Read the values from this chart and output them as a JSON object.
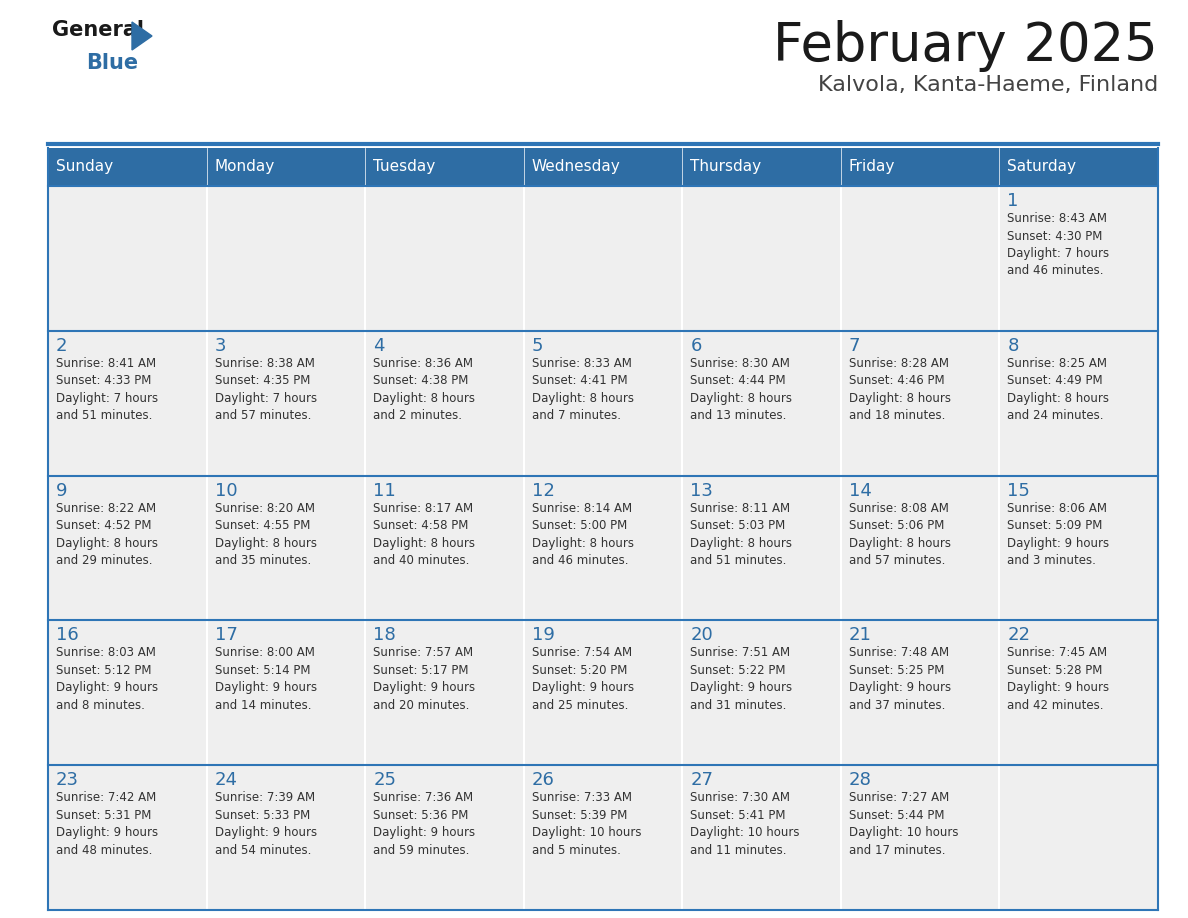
{
  "title": "February 2025",
  "subtitle": "Kalvola, Kanta-Haeme, Finland",
  "header_bg": "#2E6DA4",
  "header_text_color": "#FFFFFF",
  "cell_bg": "#EFEFEF",
  "day_number_color": "#2E6DA4",
  "info_text_color": "#333333",
  "border_color": "#2E75B6",
  "days_of_week": [
    "Sunday",
    "Monday",
    "Tuesday",
    "Wednesday",
    "Thursday",
    "Friday",
    "Saturday"
  ],
  "weeks": [
    [
      {
        "day": "",
        "info": ""
      },
      {
        "day": "",
        "info": ""
      },
      {
        "day": "",
        "info": ""
      },
      {
        "day": "",
        "info": ""
      },
      {
        "day": "",
        "info": ""
      },
      {
        "day": "",
        "info": ""
      },
      {
        "day": "1",
        "info": "Sunrise: 8:43 AM\nSunset: 4:30 PM\nDaylight: 7 hours\nand 46 minutes."
      }
    ],
    [
      {
        "day": "2",
        "info": "Sunrise: 8:41 AM\nSunset: 4:33 PM\nDaylight: 7 hours\nand 51 minutes."
      },
      {
        "day": "3",
        "info": "Sunrise: 8:38 AM\nSunset: 4:35 PM\nDaylight: 7 hours\nand 57 minutes."
      },
      {
        "day": "4",
        "info": "Sunrise: 8:36 AM\nSunset: 4:38 PM\nDaylight: 8 hours\nand 2 minutes."
      },
      {
        "day": "5",
        "info": "Sunrise: 8:33 AM\nSunset: 4:41 PM\nDaylight: 8 hours\nand 7 minutes."
      },
      {
        "day": "6",
        "info": "Sunrise: 8:30 AM\nSunset: 4:44 PM\nDaylight: 8 hours\nand 13 minutes."
      },
      {
        "day": "7",
        "info": "Sunrise: 8:28 AM\nSunset: 4:46 PM\nDaylight: 8 hours\nand 18 minutes."
      },
      {
        "day": "8",
        "info": "Sunrise: 8:25 AM\nSunset: 4:49 PM\nDaylight: 8 hours\nand 24 minutes."
      }
    ],
    [
      {
        "day": "9",
        "info": "Sunrise: 8:22 AM\nSunset: 4:52 PM\nDaylight: 8 hours\nand 29 minutes."
      },
      {
        "day": "10",
        "info": "Sunrise: 8:20 AM\nSunset: 4:55 PM\nDaylight: 8 hours\nand 35 minutes."
      },
      {
        "day": "11",
        "info": "Sunrise: 8:17 AM\nSunset: 4:58 PM\nDaylight: 8 hours\nand 40 minutes."
      },
      {
        "day": "12",
        "info": "Sunrise: 8:14 AM\nSunset: 5:00 PM\nDaylight: 8 hours\nand 46 minutes."
      },
      {
        "day": "13",
        "info": "Sunrise: 8:11 AM\nSunset: 5:03 PM\nDaylight: 8 hours\nand 51 minutes."
      },
      {
        "day": "14",
        "info": "Sunrise: 8:08 AM\nSunset: 5:06 PM\nDaylight: 8 hours\nand 57 minutes."
      },
      {
        "day": "15",
        "info": "Sunrise: 8:06 AM\nSunset: 5:09 PM\nDaylight: 9 hours\nand 3 minutes."
      }
    ],
    [
      {
        "day": "16",
        "info": "Sunrise: 8:03 AM\nSunset: 5:12 PM\nDaylight: 9 hours\nand 8 minutes."
      },
      {
        "day": "17",
        "info": "Sunrise: 8:00 AM\nSunset: 5:14 PM\nDaylight: 9 hours\nand 14 minutes."
      },
      {
        "day": "18",
        "info": "Sunrise: 7:57 AM\nSunset: 5:17 PM\nDaylight: 9 hours\nand 20 minutes."
      },
      {
        "day": "19",
        "info": "Sunrise: 7:54 AM\nSunset: 5:20 PM\nDaylight: 9 hours\nand 25 minutes."
      },
      {
        "day": "20",
        "info": "Sunrise: 7:51 AM\nSunset: 5:22 PM\nDaylight: 9 hours\nand 31 minutes."
      },
      {
        "day": "21",
        "info": "Sunrise: 7:48 AM\nSunset: 5:25 PM\nDaylight: 9 hours\nand 37 minutes."
      },
      {
        "day": "22",
        "info": "Sunrise: 7:45 AM\nSunset: 5:28 PM\nDaylight: 9 hours\nand 42 minutes."
      }
    ],
    [
      {
        "day": "23",
        "info": "Sunrise: 7:42 AM\nSunset: 5:31 PM\nDaylight: 9 hours\nand 48 minutes."
      },
      {
        "day": "24",
        "info": "Sunrise: 7:39 AM\nSunset: 5:33 PM\nDaylight: 9 hours\nand 54 minutes."
      },
      {
        "day": "25",
        "info": "Sunrise: 7:36 AM\nSunset: 5:36 PM\nDaylight: 9 hours\nand 59 minutes."
      },
      {
        "day": "26",
        "info": "Sunrise: 7:33 AM\nSunset: 5:39 PM\nDaylight: 10 hours\nand 5 minutes."
      },
      {
        "day": "27",
        "info": "Sunrise: 7:30 AM\nSunset: 5:41 PM\nDaylight: 10 hours\nand 11 minutes."
      },
      {
        "day": "28",
        "info": "Sunrise: 7:27 AM\nSunset: 5:44 PM\nDaylight: 10 hours\nand 17 minutes."
      },
      {
        "day": "",
        "info": ""
      }
    ]
  ],
  "logo_text_general": "General",
  "logo_text_blue": "Blue",
  "logo_triangle_color": "#2E6DA4",
  "fig_width": 11.88,
  "fig_height": 9.18,
  "dpi": 100
}
